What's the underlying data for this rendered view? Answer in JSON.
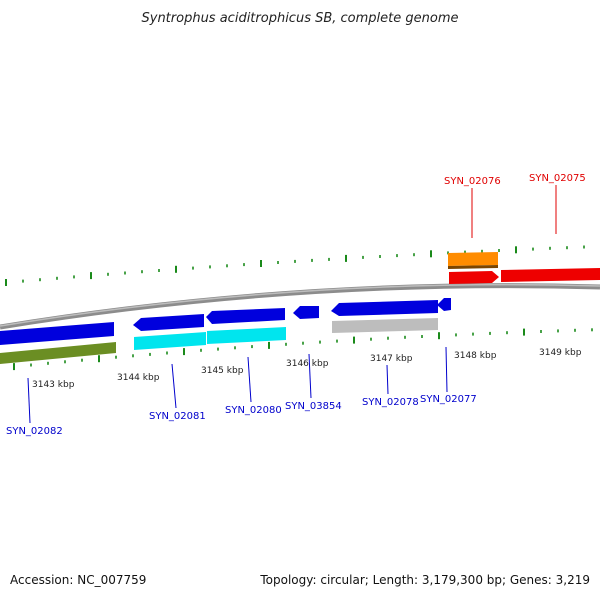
{
  "title": "Syntrophus aciditrophicus SB, complete genome",
  "footer": {
    "accession": "Accession: NC_007759",
    "summary": "Topology: circular; Length: 3,179,300 bp; Genes: 3,219"
  },
  "colors": {
    "backbone": "#8c8c8c",
    "tick": "#1a8a1a",
    "forward_label": "#e00000",
    "reverse_label": "#0000cc"
  },
  "kbp_labels": [
    "3143 kbp",
    "3144 kbp",
    "3145 kbp",
    "3146 kbp",
    "3147 kbp",
    "3148 kbp",
    "3149 kbp"
  ],
  "forward_genes": [
    {
      "id": "SYN_02076",
      "color": "#ff8c00",
      "lane": "gene"
    },
    {
      "id": "SYN_02075",
      "color": "#ee0000",
      "lane": "cds"
    }
  ],
  "reverse_genes": [
    {
      "id": "SYN_02082",
      "color": "#0000dd",
      "shade": "#6b8e23"
    },
    {
      "id": "SYN_02081",
      "color": "#0000dd",
      "shade": "#00e5ee"
    },
    {
      "id": "SYN_02080",
      "color": "#0000dd",
      "shade": "#00e5ee"
    },
    {
      "id": "SYN_03854",
      "color": "#0000dd",
      "shade": null
    },
    {
      "id": "SYN_02078",
      "color": "#0000dd",
      "shade": "#bdbdbd"
    },
    {
      "id": "SYN_02077",
      "color": "#0000dd",
      "shade": null
    }
  ]
}
